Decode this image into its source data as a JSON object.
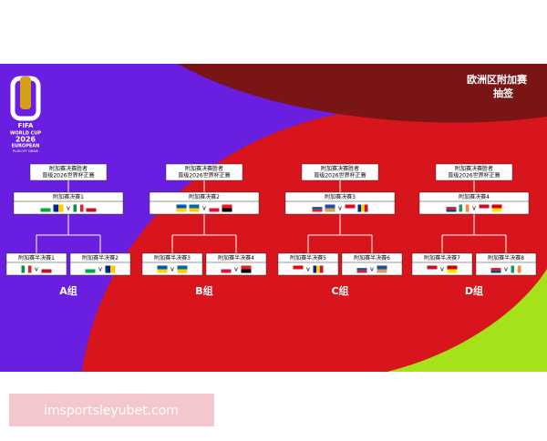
{
  "header": {
    "title": "欧洲区附加赛",
    "subtitle": "抽签"
  },
  "logo": {
    "brand": "FIFA",
    "line1": "WORLD CUP",
    "year": "2026",
    "line2": "EUROPEAN",
    "line3": "PLAY-OFF DRAW"
  },
  "groups": [
    {
      "winner": [
        "附加赛决赛胜者",
        "晋级2026世界杯正赛"
      ],
      "final": {
        "label": "附加赛决赛1",
        "sep": "v"
      },
      "semis": [
        {
          "label": "附加赛半决赛1",
          "sep": "v"
        },
        {
          "label": "附加赛半决赛2",
          "sep": "v"
        }
      ],
      "name": "A组"
    },
    {
      "winner": [
        "附加赛决赛胜者",
        "晋级2026世界杯正赛"
      ],
      "final": {
        "label": "附加赛决赛2",
        "sep": "v"
      },
      "semis": [
        {
          "label": "附加赛半决赛3",
          "sep": "v"
        },
        {
          "label": "附加赛半决赛4",
          "sep": "v"
        }
      ],
      "name": "B组"
    },
    {
      "winner": [
        "附加赛决赛胜者",
        "晋级2026世界杯正赛"
      ],
      "final": {
        "label": "附加赛决赛3",
        "sep": "v"
      },
      "semis": [
        {
          "label": "附加赛半决赛5",
          "sep": "v"
        },
        {
          "label": "附加赛半决赛6",
          "sep": "v"
        }
      ],
      "name": "C组"
    },
    {
      "winner": [
        "附加赛决赛胜者",
        "晋级2026世界杯正赛"
      ],
      "final": {
        "label": "附加赛决赛4",
        "sep": "v"
      },
      "semis": [
        {
          "label": "附加赛半决赛7",
          "sep": "v"
        },
        {
          "label": "附加赛半决赛8",
          "sep": "v"
        }
      ],
      "name": "D组"
    }
  ],
  "watermark": "imsportsleyubet.com"
}
